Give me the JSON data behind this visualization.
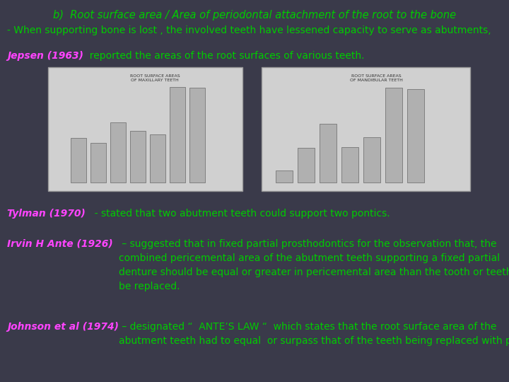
{
  "background_color": "#3a3a4a",
  "title": "b)  Root surface area / Area of periodontal attachment of the root to the bone",
  "title_color": "#00cc00",
  "title_fontsize": 10.5,
  "line1": "- When supporting bone is lost , the involved teeth have lessened capacity to serve as abutments,",
  "line1_color": "#00cc00",
  "line1_fontsize": 10,
  "jepsen_label": "Jepsen (1963)",
  "jepsen_label_color": "#ff44ff",
  "jepsen_text": "  reported the areas of the root surfaces of various teeth.",
  "jepsen_text_color": "#00cc00",
  "jepsen_fontsize": 10,
  "tylman_label": "Tylman (1970)",
  "tylman_label_color": "#ff44ff",
  "tylman_text": "  - stated that two abutment teeth could support two pontics.",
  "tylman_text_color": "#00cc00",
  "tylman_fontsize": 10,
  "irvin_label": "Irvin H Ante (1926)",
  "irvin_label_color": "#ff44ff",
  "irvin_text1": " – suggested that in fixed partial prosthodontics for the observation that, the",
  "irvin_text2": "combined pericemental area of the abutment teeth supporting a fixed partial",
  "irvin_text3": "denture should be equal or greater in pericemental area than the tooth or teeth to",
  "irvin_text4": "be replaced.",
  "irvin_text_color": "#00cc00",
  "irvin_fontsize": 10,
  "johnson_label": "Johnson et al (1974)",
  "johnson_label_color": "#ff44ff",
  "johnson_text1": " – designated “  ANTE’S LAW “  which states that the root surface area of the",
  "johnson_text2": "abutment teeth had to equal  or surpass that of the teeth being replaced with pontics",
  "johnson_text_color": "#00cc00",
  "johnson_fontsize": 10,
  "left_vals": [
    204,
    179,
    273,
    234,
    220,
    433,
    431
  ],
  "right_vals": [
    54,
    158,
    268,
    160,
    207,
    431,
    425
  ]
}
